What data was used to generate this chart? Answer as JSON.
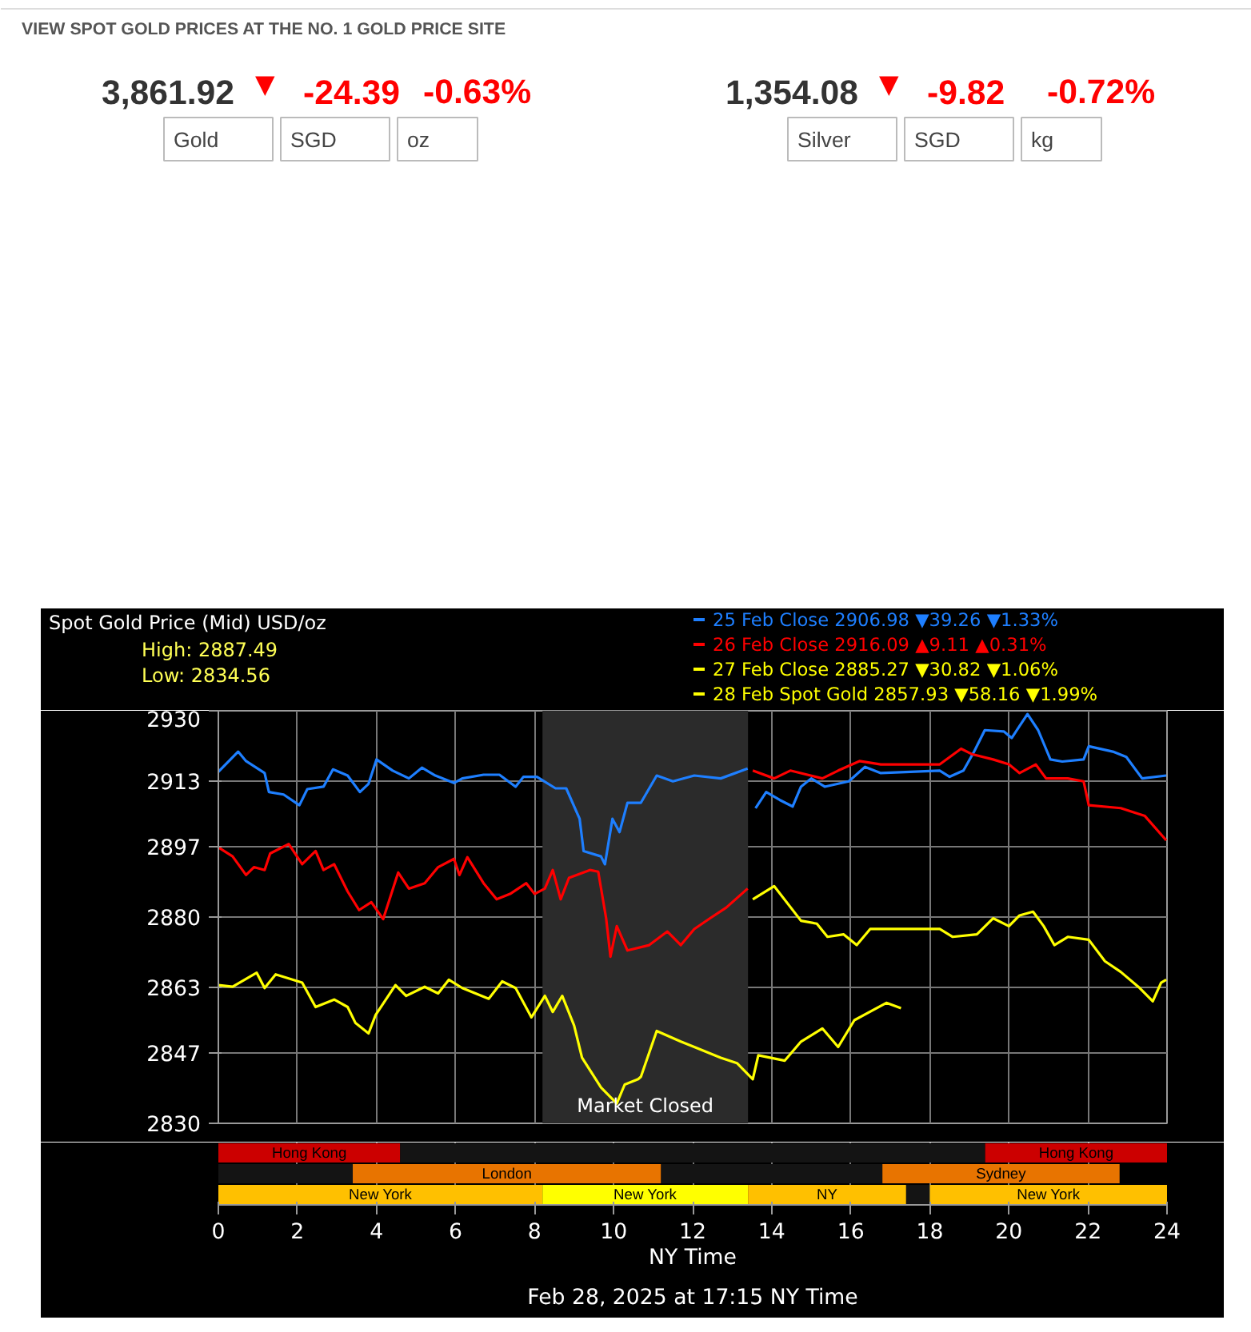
{
  "chart_data": [
    {
      "type": "other",
      "annotations": [
        "VIEW SPOT GOLD PRICES AT THE NO. 1 GOLD PRICE SITE",
        "3,861.92",
        "▼",
        "-24.39",
        "-0.63%",
        "Gold",
        "SGD",
        "oz",
        "1,354.08",
        "▼",
        "-9.82",
        "-0.72%",
        "Silver",
        "SGD",
        "kg"
      ]
    },
    {
      "type": "line",
      "title": "Spot Gold Price (Mid) USD/oz",
      "annotations": [
        "High: 2887.49",
        "Low: 2834.56"
      ],
      "xlim": [
        0,
        24
      ],
      "xticks": [
        0,
        2,
        4,
        6,
        8,
        10,
        12,
        14,
        16,
        18,
        20,
        22,
        24
      ],
      "ylim": [
        2830,
        2930
      ],
      "yticks": [
        2830,
        2847,
        2863,
        2880,
        2897,
        2913,
        2930
      ],
      "grid": true,
      "legend": "top right",
      "tick_labels": "y",
      "bands": [
        {
          "axis": "x",
          "from": 8.2,
          "to": 13.4,
          "label": "Market Closed",
          "color": "#2b2b2b"
        }
      ],
      "series": [
        {
          "name": "25 Feb Close  2906.98 ▼39.26 ▼1.33%",
          "color": "#1e7fff",
          "x": [
            0,
            0.5,
            0.7,
            1.17,
            1.28,
            1.65,
            2.05,
            2.25,
            2.66,
            2.9,
            3.27,
            3.58,
            3.8,
            4.0,
            4.41,
            4.82,
            5.15,
            5.49,
            5.96,
            6.17,
            6.71,
            7.11,
            7.52,
            7.72,
            8.06,
            8.53,
            8.8,
            9.14,
            9.24,
            9.68,
            9.78,
            9.97,
            10.15,
            10.35,
            10.69,
            11.09,
            11.5,
            12.04,
            12.71,
            13.39,
            13.5,
            13.59,
            13.86,
            14.2,
            14.53,
            14.74,
            15.0,
            15.34,
            15.95,
            16.36,
            16.76,
            18.25,
            18.5,
            18.85,
            19.12,
            19.39,
            19.87,
            20.07,
            20.47,
            20.74,
            21.05,
            21.35,
            21.89,
            22.02,
            22.63,
            22.97,
            23.37,
            23.98
          ],
          "values": [
            2915.2,
            2920.1,
            2917.8,
            2914.9,
            2910.3,
            2909.7,
            2907.1,
            2911.0,
            2911.6,
            2915.8,
            2914.3,
            2910.3,
            2912.3,
            2918.2,
            2915.5,
            2913.6,
            2916.2,
            2914.3,
            2912.5,
            2913.6,
            2914.5,
            2914.5,
            2911.6,
            2914.0,
            2914.0,
            2911.2,
            2911.2,
            2903.8,
            2896.0,
            2894.7,
            2892.8,
            2903.8,
            2900.6,
            2907.7,
            2907.7,
            2914.3,
            2912.9,
            2914.3,
            2913.6,
            2916.0,
            null,
            2906.4,
            2910.3,
            2908.4,
            2906.8,
            2911.6,
            2913.6,
            2911.6,
            2912.9,
            2916.4,
            2914.9,
            2915.5,
            2914.0,
            2915.5,
            2920.1,
            2925.3,
            2925.0,
            2923.4,
            2929.2,
            2925.3,
            2918.2,
            2917.7,
            2918.2,
            2921.4,
            2920.1,
            2918.8,
            2913.6,
            2914.3
          ]
        },
        {
          "name": "26 Feb Close  2916.09 ▲9.11 ▲0.31%",
          "color": "#ff0000",
          "x": [
            0,
            0.36,
            0.7,
            0.9,
            1.17,
            1.31,
            1.78,
            2.12,
            2.46,
            2.66,
            2.93,
            3.27,
            3.56,
            3.87,
            4.17,
            4.55,
            4.82,
            5.22,
            5.56,
            5.96,
            6.1,
            6.3,
            6.71,
            7.04,
            7.38,
            7.79,
            8.0,
            8.26,
            8.46,
            8.66,
            8.87,
            9.4,
            9.61,
            9.81,
            9.92,
            10.08,
            10.35,
            10.9,
            11.36,
            11.7,
            12.04,
            12.44,
            12.85,
            13.39,
            13.45,
            13.52,
            14.06,
            14.47,
            15.28,
            15.68,
            16.22,
            16.76,
            18.25,
            18.79,
            19.06,
            19.6,
            20.0,
            20.27,
            20.68,
            20.94,
            21.49,
            21.89,
            22.02,
            22.83,
            23.44,
            23.98
          ],
          "values": [
            2896.9,
            2894.7,
            2890.2,
            2892.1,
            2891.4,
            2895.4,
            2897.7,
            2892.8,
            2896.0,
            2891.4,
            2892.8,
            2886.2,
            2881.7,
            2883.6,
            2879.5,
            2890.8,
            2886.9,
            2888.2,
            2892.1,
            2894.1,
            2890.2,
            2894.5,
            2888.2,
            2884.3,
            2885.6,
            2888.2,
            2885.6,
            2886.9,
            2891.4,
            2884.3,
            2889.5,
            2891.4,
            2891.0,
            2879.7,
            2870.4,
            2877.8,
            2871.9,
            2873.2,
            2876.5,
            2873.2,
            2877.1,
            2879.7,
            2882.3,
            2886.9,
            null,
            2915.5,
            2913.6,
            2915.5,
            2913.6,
            2915.5,
            2917.8,
            2917.0,
            2917.0,
            2920.8,
            2919.5,
            2918.2,
            2917.0,
            2914.9,
            2917.0,
            2913.6,
            2913.6,
            2912.9,
            2907.1,
            2906.4,
            2904.5,
            2898.6
          ]
        },
        {
          "name": "27 Feb Close  2885.27 ▼30.82 ▼1.06%",
          "color": "#ffff00",
          "x": [
            13.52,
            14.06,
            14.74,
            15.14,
            15.41,
            15.82,
            16.15,
            16.49,
            18.25,
            18.58,
            19.19,
            19.6,
            20.0,
            20.27,
            20.61,
            20.88,
            21.15,
            21.49,
            22.02,
            22.43,
            22.83,
            23.31,
            23.64,
            23.85,
            23.98
          ],
          "values": [
            2884.3,
            2887.5,
            2879.1,
            2878.4,
            2875.2,
            2875.8,
            2873.2,
            2877.1,
            2877.1,
            2875.2,
            2875.8,
            2879.7,
            2877.8,
            2880.4,
            2881.3,
            2877.8,
            2873.2,
            2875.2,
            2874.5,
            2869.3,
            2866.7,
            2862.8,
            2859.6,
            2864.1,
            2864.8
          ]
        },
        {
          "name": "28 Feb Spot Gold  2857.93 ▼58.16 ▼1.99%",
          "color": "#ffff00",
          "x": [
            0,
            0.36,
            0.97,
            1.17,
            1.45,
            2.12,
            2.46,
            2.93,
            3.27,
            3.47,
            3.8,
            3.98,
            4.48,
            4.75,
            5.22,
            5.56,
            5.83,
            6.17,
            6.84,
            7.18,
            7.52,
            7.92,
            8.26,
            8.46,
            8.7,
            9.0,
            9.2,
            9.68,
            10.08,
            10.28,
            10.62,
            10.69,
            11.09,
            11.7,
            12.04,
            12.71,
            13.12,
            13.52,
            13.66,
            14.33,
            14.74,
            15.28,
            15.68,
            16.09,
            16.9,
            17.27
          ],
          "values": [
            2863.5,
            2863.1,
            2866.5,
            2862.8,
            2866.1,
            2864.1,
            2858.2,
            2860.0,
            2858.2,
            2854.3,
            2851.8,
            2856.3,
            2863.5,
            2860.9,
            2863.1,
            2861.5,
            2864.8,
            2862.8,
            2860.2,
            2864.4,
            2862.8,
            2855.7,
            2860.9,
            2857.0,
            2860.9,
            2853.7,
            2845.9,
            2838.7,
            2834.8,
            2839.4,
            2840.7,
            2841.3,
            2852.4,
            2849.8,
            2848.5,
            2845.9,
            2844.6,
            2840.7,
            2846.5,
            2845.2,
            2849.8,
            2853.0,
            2848.5,
            2855.0,
            2859.2,
            2857.9
          ]
        }
      ]
    },
    {
      "type": "bar",
      "orientation": "horizontal",
      "stacked": true,
      "categories": [
        null,
        null,
        null
      ],
      "xlim": [
        0,
        24
      ],
      "xticks": [
        0,
        2,
        4,
        6,
        8,
        10,
        12,
        14,
        16,
        18,
        20,
        22,
        24
      ],
      "xlabel": "NY Time",
      "grid": "x",
      "annotations": [
        "Feb 28, 2025 at 17:15 NY Time"
      ],
      "series": [
        {
          "colors": [
            "#cc0000",
            "#141414",
            "#ffc000"
          ],
          "values": [
            4.6,
            3.4,
            8.2
          ],
          "value_labels": [
            "Hong Kong",
            null,
            "New York"
          ]
        },
        {
          "colors": [
            "#141414",
            "#e87400",
            "#ffff00"
          ],
          "values": [
            14.8,
            7.8,
            5.2
          ],
          "value_labels": [
            null,
            "London",
            "New York"
          ]
        },
        {
          "colors": [
            "#cc0000",
            "#141414",
            "#ffc000"
          ],
          "values": [
            4.6,
            5.6,
            4.0
          ],
          "value_labels": [
            "Hong Kong",
            null,
            "NY"
          ]
        },
        {
          "colors": [
            "#141414",
            "#e87400",
            "#141414"
          ],
          "values": [
            null,
            6.0,
            0.6
          ],
          "value_labels": [
            null,
            "Sydney",
            null
          ]
        },
        {
          "colors": [
            "#141414",
            "#141414",
            "#ffc000"
          ],
          "values": [
            null,
            null,
            6.0
          ],
          "value_labels": [
            null,
            null,
            "New York"
          ]
        }
      ]
    }
  ]
}
